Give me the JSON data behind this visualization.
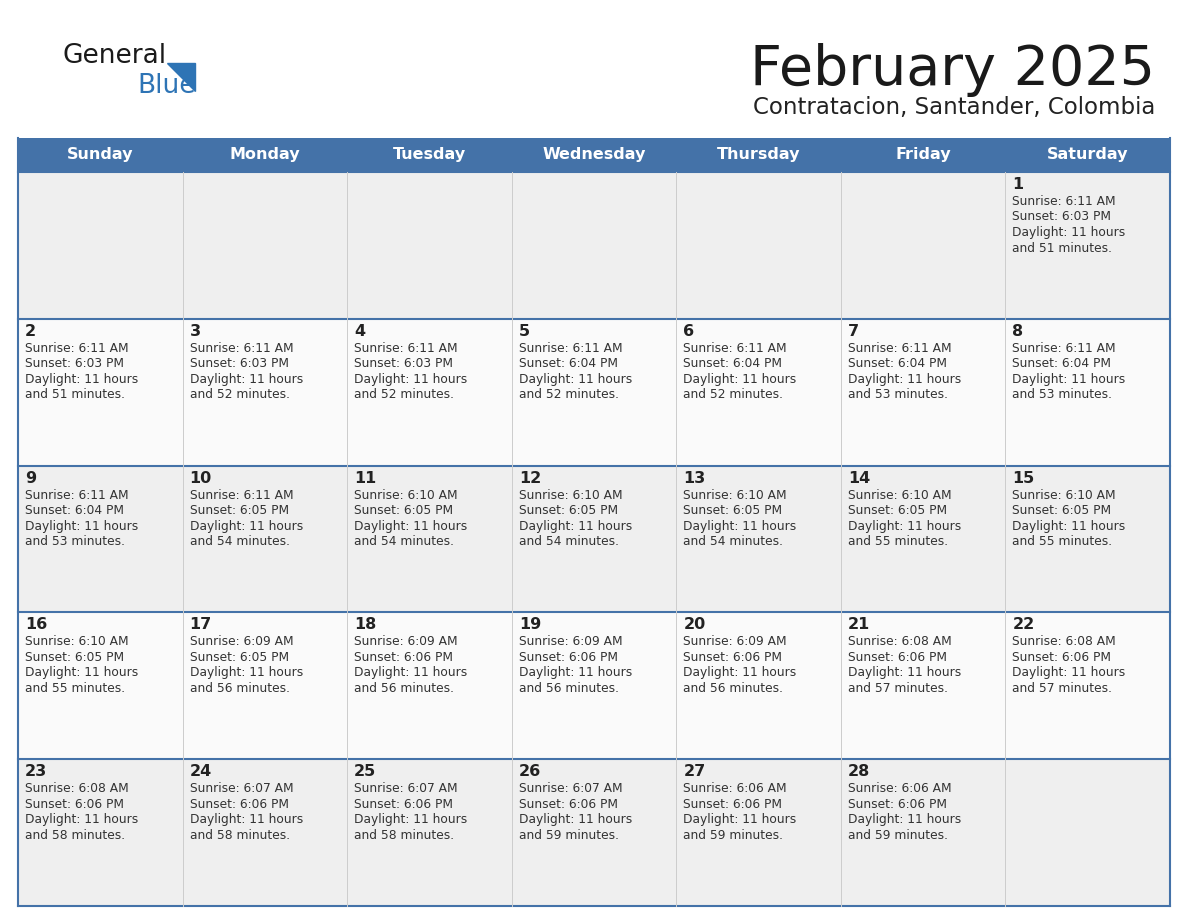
{
  "title": "February 2025",
  "subtitle": "Contratacion, Santander, Colombia",
  "header_bg": "#4472A8",
  "header_text": "#FFFFFF",
  "header_days": [
    "Sunday",
    "Monday",
    "Tuesday",
    "Wednesday",
    "Thursday",
    "Friday",
    "Saturday"
  ],
  "row_bg_odd": "#EFEFEF",
  "row_bg_even": "#FAFAFA",
  "cell_border_color": "#4472A8",
  "cell_divider_color": "#CCCCCC",
  "day_number_color": "#222222",
  "info_text_color": "#333333",
  "title_color": "#1a1a1a",
  "subtitle_color": "#222222",
  "logo_general_color": "#1a1a1a",
  "logo_blue_color": "#2E74B5",
  "figsize": [
    11.88,
    9.18
  ],
  "dpi": 100,
  "calendar_data": [
    [
      null,
      null,
      null,
      null,
      null,
      null,
      {
        "day": 1,
        "sunrise": "6:11 AM",
        "sunset": "6:03 PM",
        "daylight_hours": 11,
        "daylight_minutes": 51
      }
    ],
    [
      {
        "day": 2,
        "sunrise": "6:11 AM",
        "sunset": "6:03 PM",
        "daylight_hours": 11,
        "daylight_minutes": 51
      },
      {
        "day": 3,
        "sunrise": "6:11 AM",
        "sunset": "6:03 PM",
        "daylight_hours": 11,
        "daylight_minutes": 52
      },
      {
        "day": 4,
        "sunrise": "6:11 AM",
        "sunset": "6:03 PM",
        "daylight_hours": 11,
        "daylight_minutes": 52
      },
      {
        "day": 5,
        "sunrise": "6:11 AM",
        "sunset": "6:04 PM",
        "daylight_hours": 11,
        "daylight_minutes": 52
      },
      {
        "day": 6,
        "sunrise": "6:11 AM",
        "sunset": "6:04 PM",
        "daylight_hours": 11,
        "daylight_minutes": 52
      },
      {
        "day": 7,
        "sunrise": "6:11 AM",
        "sunset": "6:04 PM",
        "daylight_hours": 11,
        "daylight_minutes": 53
      },
      {
        "day": 8,
        "sunrise": "6:11 AM",
        "sunset": "6:04 PM",
        "daylight_hours": 11,
        "daylight_minutes": 53
      }
    ],
    [
      {
        "day": 9,
        "sunrise": "6:11 AM",
        "sunset": "6:04 PM",
        "daylight_hours": 11,
        "daylight_minutes": 53
      },
      {
        "day": 10,
        "sunrise": "6:11 AM",
        "sunset": "6:05 PM",
        "daylight_hours": 11,
        "daylight_minutes": 54
      },
      {
        "day": 11,
        "sunrise": "6:10 AM",
        "sunset": "6:05 PM",
        "daylight_hours": 11,
        "daylight_minutes": 54
      },
      {
        "day": 12,
        "sunrise": "6:10 AM",
        "sunset": "6:05 PM",
        "daylight_hours": 11,
        "daylight_minutes": 54
      },
      {
        "day": 13,
        "sunrise": "6:10 AM",
        "sunset": "6:05 PM",
        "daylight_hours": 11,
        "daylight_minutes": 54
      },
      {
        "day": 14,
        "sunrise": "6:10 AM",
        "sunset": "6:05 PM",
        "daylight_hours": 11,
        "daylight_minutes": 55
      },
      {
        "day": 15,
        "sunrise": "6:10 AM",
        "sunset": "6:05 PM",
        "daylight_hours": 11,
        "daylight_minutes": 55
      }
    ],
    [
      {
        "day": 16,
        "sunrise": "6:10 AM",
        "sunset": "6:05 PM",
        "daylight_hours": 11,
        "daylight_minutes": 55
      },
      {
        "day": 17,
        "sunrise": "6:09 AM",
        "sunset": "6:05 PM",
        "daylight_hours": 11,
        "daylight_minutes": 56
      },
      {
        "day": 18,
        "sunrise": "6:09 AM",
        "sunset": "6:06 PM",
        "daylight_hours": 11,
        "daylight_minutes": 56
      },
      {
        "day": 19,
        "sunrise": "6:09 AM",
        "sunset": "6:06 PM",
        "daylight_hours": 11,
        "daylight_minutes": 56
      },
      {
        "day": 20,
        "sunrise": "6:09 AM",
        "sunset": "6:06 PM",
        "daylight_hours": 11,
        "daylight_minutes": 56
      },
      {
        "day": 21,
        "sunrise": "6:08 AM",
        "sunset": "6:06 PM",
        "daylight_hours": 11,
        "daylight_minutes": 57
      },
      {
        "day": 22,
        "sunrise": "6:08 AM",
        "sunset": "6:06 PM",
        "daylight_hours": 11,
        "daylight_minutes": 57
      }
    ],
    [
      {
        "day": 23,
        "sunrise": "6:08 AM",
        "sunset": "6:06 PM",
        "daylight_hours": 11,
        "daylight_minutes": 58
      },
      {
        "day": 24,
        "sunrise": "6:07 AM",
        "sunset": "6:06 PM",
        "daylight_hours": 11,
        "daylight_minutes": 58
      },
      {
        "day": 25,
        "sunrise": "6:07 AM",
        "sunset": "6:06 PM",
        "daylight_hours": 11,
        "daylight_minutes": 58
      },
      {
        "day": 26,
        "sunrise": "6:07 AM",
        "sunset": "6:06 PM",
        "daylight_hours": 11,
        "daylight_minutes": 59
      },
      {
        "day": 27,
        "sunrise": "6:06 AM",
        "sunset": "6:06 PM",
        "daylight_hours": 11,
        "daylight_minutes": 59
      },
      {
        "day": 28,
        "sunrise": "6:06 AM",
        "sunset": "6:06 PM",
        "daylight_hours": 11,
        "daylight_minutes": 59
      },
      null
    ]
  ]
}
